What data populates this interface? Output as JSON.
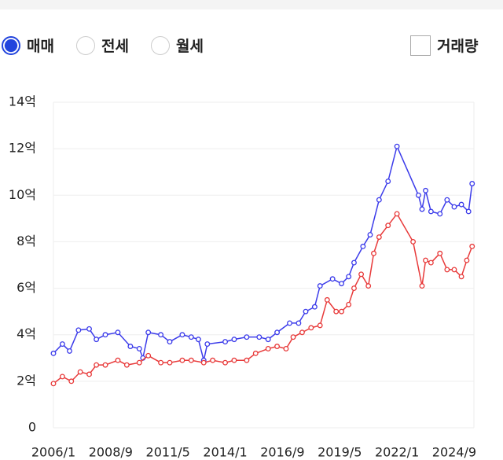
{
  "controls": {
    "radios": [
      {
        "label": "매매",
        "selected": true
      },
      {
        "label": "전세",
        "selected": false
      },
      {
        "label": "월세",
        "selected": false
      }
    ],
    "checkbox": {
      "label": "거래량",
      "checked": false
    }
  },
  "chart_data": {
    "type": "line",
    "xlim": [
      "2006/1",
      "2025/8"
    ],
    "xticks": [
      "2006/1",
      "2008/9",
      "2011/5",
      "2014/1",
      "2016/9",
      "2019/5",
      "2022/1",
      "2024/9"
    ],
    "ylim": [
      0,
      14
    ],
    "yticks": [
      0,
      {
        "value": 2,
        "label": "2억"
      },
      {
        "value": 4,
        "label": "4억"
      },
      {
        "value": 6,
        "label": "6억"
      },
      {
        "value": 8,
        "label": "8억"
      },
      {
        "value": 10,
        "label": "10억"
      },
      {
        "value": 12,
        "label": "12억"
      },
      {
        "value": 14,
        "label": "14억"
      }
    ],
    "grid": true,
    "series": [
      {
        "color": "#3b3bea",
        "x": [
          "2006/1",
          "2006/6",
          "2006/10",
          "2007/3",
          "2007/9",
          "2008/1",
          "2008/6",
          "2009/1",
          "2009/8",
          "2010/1",
          "2010/3",
          "2010/6",
          "2011/1",
          "2011/6",
          "2012/1",
          "2012/6",
          "2012/10",
          "2013/1",
          "2013/3",
          "2014/1",
          "2014/6",
          "2015/1",
          "2015/8",
          "2016/1",
          "2016/6",
          "2017/1",
          "2017/6",
          "2017/10",
          "2018/3",
          "2018/6",
          "2019/1",
          "2019/6",
          "2019/10",
          "2020/1",
          "2020/6",
          "2020/10",
          "2021/3",
          "2021/8",
          "2022/1",
          "2023/1",
          "2023/3",
          "2023/5",
          "2023/8",
          "2024/1",
          "2024/5",
          "2024/9",
          "2025/1",
          "2025/5",
          "2025/7"
        ],
        "values": [
          3.2,
          3.6,
          3.3,
          4.2,
          4.25,
          3.8,
          4.0,
          4.1,
          3.5,
          3.4,
          3.0,
          4.1,
          4.0,
          3.7,
          4.0,
          3.9,
          3.8,
          2.9,
          3.6,
          3.7,
          3.8,
          3.9,
          3.9,
          3.8,
          4.1,
          4.5,
          4.5,
          5.0,
          5.2,
          6.1,
          6.4,
          6.2,
          6.5,
          7.1,
          7.8,
          8.3,
          9.8,
          10.6,
          12.1,
          10.0,
          9.4,
          10.2,
          9.3,
          9.2,
          9.8,
          9.5,
          9.6,
          9.3,
          10.5
        ]
      },
      {
        "color": "#e83a3a",
        "x": [
          "2006/1",
          "2006/6",
          "2006/11",
          "2007/4",
          "2007/9",
          "2008/1",
          "2008/6",
          "2009/1",
          "2009/6",
          "2010/1",
          "2010/6",
          "2011/1",
          "2011/6",
          "2012/1",
          "2012/6",
          "2013/1",
          "2013/6",
          "2014/1",
          "2014/6",
          "2015/1",
          "2015/6",
          "2016/1",
          "2016/6",
          "2016/11",
          "2017/3",
          "2017/8",
          "2018/1",
          "2018/6",
          "2018/10",
          "2019/3",
          "2019/6",
          "2019/10",
          "2020/1",
          "2020/5",
          "2020/9",
          "2020/12",
          "2021/3",
          "2021/8",
          "2022/1",
          "2022/10",
          "2023/3",
          "2023/5",
          "2023/8",
          "2024/1",
          "2024/5",
          "2024/9",
          "2025/1",
          "2025/4",
          "2025/7"
        ],
        "values": [
          1.9,
          2.2,
          2.0,
          2.4,
          2.3,
          2.7,
          2.7,
          2.9,
          2.7,
          2.8,
          3.1,
          2.8,
          2.8,
          2.9,
          2.9,
          2.8,
          2.9,
          2.8,
          2.9,
          2.9,
          3.2,
          3.4,
          3.5,
          3.4,
          3.9,
          4.1,
          4.3,
          4.4,
          5.5,
          5.0,
          5.0,
          5.3,
          6.0,
          6.6,
          6.1,
          7.5,
          8.2,
          8.7,
          9.2,
          8.0,
          6.1,
          7.2,
          7.1,
          7.5,
          6.8,
          6.8,
          6.5,
          7.2,
          7.8
        ]
      }
    ]
  }
}
